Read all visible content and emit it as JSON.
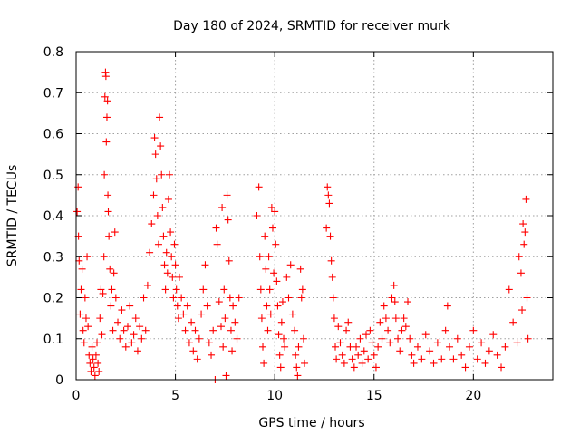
{
  "chart_data": {
    "type": "scatter",
    "title": "Day 180 of 2024, SRMTID for receiver murk",
    "xlabel": "GPS time / hours",
    "ylabel": "SRMTID / TECUs",
    "xlim": [
      0,
      24
    ],
    "ylim": [
      0,
      0.8
    ],
    "xticks": [
      0,
      5,
      10,
      15,
      20
    ],
    "xtick_labels": [
      "0",
      "5",
      "10",
      "15",
      "20"
    ],
    "yticks": [
      0,
      0.1,
      0.2,
      0.3,
      0.4,
      0.5,
      0.6,
      0.7,
      0.8
    ],
    "ytick_labels": [
      "0",
      "0.1",
      "0.2",
      "0.3",
      "0.4",
      "0.5",
      "0.6",
      "0.7",
      "0.8"
    ],
    "grid": true,
    "marker": "+",
    "color": "#ff0000",
    "series": [
      {
        "name": "SRMTID",
        "points": [
          [
            0.05,
            0.41
          ],
          [
            0.1,
            0.47
          ],
          [
            0.12,
            0.35
          ],
          [
            0.15,
            0.29
          ],
          [
            0.2,
            0.16
          ],
          [
            0.25,
            0.22
          ],
          [
            0.3,
            0.27
          ],
          [
            0.35,
            0.12
          ],
          [
            0.4,
            0.09
          ],
          [
            0.45,
            0.2
          ],
          [
            0.5,
            0.15
          ],
          [
            0.55,
            0.3
          ],
          [
            0.6,
            0.13
          ],
          [
            0.65,
            0.06
          ],
          [
            0.7,
            0.04
          ],
          [
            0.75,
            0.02
          ],
          [
            0.8,
            0.08
          ],
          [
            0.85,
            0.05
          ],
          [
            0.9,
            0.03
          ],
          [
            0.95,
            0.01
          ],
          [
            1.0,
            0.06
          ],
          [
            1.05,
            0.09
          ],
          [
            1.1,
            0.04
          ],
          [
            1.15,
            0.02
          ],
          [
            1.2,
            0.15
          ],
          [
            1.25,
            0.22
          ],
          [
            1.3,
            0.11
          ],
          [
            1.35,
            0.21
          ],
          [
            1.4,
            0.3
          ],
          [
            1.42,
            0.5
          ],
          [
            1.45,
            0.69
          ],
          [
            1.48,
            0.75
          ],
          [
            1.5,
            0.74
          ],
          [
            1.52,
            0.58
          ],
          [
            1.55,
            0.64
          ],
          [
            1.58,
            0.68
          ],
          [
            1.6,
            0.45
          ],
          [
            1.62,
            0.41
          ],
          [
            1.65,
            0.35
          ],
          [
            1.7,
            0.27
          ],
          [
            1.75,
            0.18
          ],
          [
            1.8,
            0.22
          ],
          [
            1.85,
            0.12
          ],
          [
            1.9,
            0.26
          ],
          [
            1.95,
            0.36
          ],
          [
            2.0,
            0.2
          ],
          [
            2.1,
            0.14
          ],
          [
            2.2,
            0.1
          ],
          [
            2.3,
            0.17
          ],
          [
            2.4,
            0.12
          ],
          [
            2.5,
            0.08
          ],
          [
            2.6,
            0.13
          ],
          [
            2.7,
            0.18
          ],
          [
            2.8,
            0.09
          ],
          [
            2.9,
            0.11
          ],
          [
            3.0,
            0.15
          ],
          [
            3.1,
            0.07
          ],
          [
            3.2,
            0.13
          ],
          [
            3.3,
            0.1
          ],
          [
            3.4,
            0.2
          ],
          [
            3.5,
            0.12
          ],
          [
            3.6,
            0.23
          ],
          [
            3.7,
            0.31
          ],
          [
            3.8,
            0.38
          ],
          [
            3.9,
            0.45
          ],
          [
            3.95,
            0.59
          ],
          [
            4.0,
            0.55
          ],
          [
            4.05,
            0.49
          ],
          [
            4.1,
            0.4
          ],
          [
            4.15,
            0.33
          ],
          [
            4.2,
            0.64
          ],
          [
            4.25,
            0.57
          ],
          [
            4.3,
            0.5
          ],
          [
            4.35,
            0.42
          ],
          [
            4.4,
            0.35
          ],
          [
            4.45,
            0.28
          ],
          [
            4.5,
            0.22
          ],
          [
            4.55,
            0.31
          ],
          [
            4.6,
            0.26
          ],
          [
            4.65,
            0.44
          ],
          [
            4.7,
            0.5
          ],
          [
            4.75,
            0.36
          ],
          [
            4.8,
            0.3
          ],
          [
            4.85,
            0.25
          ],
          [
            4.9,
            0.2
          ],
          [
            4.95,
            0.33
          ],
          [
            5.0,
            0.28
          ],
          [
            5.05,
            0.22
          ],
          [
            5.1,
            0.18
          ],
          [
            5.15,
            0.15
          ],
          [
            5.2,
            0.25
          ],
          [
            5.3,
            0.2
          ],
          [
            5.4,
            0.16
          ],
          [
            5.5,
            0.12
          ],
          [
            5.6,
            0.18
          ],
          [
            5.7,
            0.09
          ],
          [
            5.8,
            0.14
          ],
          [
            5.9,
            0.07
          ],
          [
            6.0,
            0.12
          ],
          [
            6.1,
            0.05
          ],
          [
            6.2,
            0.1
          ],
          [
            6.3,
            0.16
          ],
          [
            6.4,
            0.22
          ],
          [
            6.5,
            0.28
          ],
          [
            6.6,
            0.18
          ],
          [
            6.7,
            0.09
          ],
          [
            6.8,
            0.06
          ],
          [
            6.9,
            0.12
          ],
          [
            7.0,
            0.0
          ],
          [
            7.05,
            0.37
          ],
          [
            7.1,
            0.33
          ],
          [
            7.2,
            0.19
          ],
          [
            7.3,
            0.13
          ],
          [
            7.35,
            0.42
          ],
          [
            7.4,
            0.08
          ],
          [
            7.45,
            0.22
          ],
          [
            7.5,
            0.15
          ],
          [
            7.55,
            0.01
          ],
          [
            7.6,
            0.45
          ],
          [
            7.65,
            0.39
          ],
          [
            7.7,
            0.29
          ],
          [
            7.75,
            0.2
          ],
          [
            7.8,
            0.12
          ],
          [
            7.85,
            0.07
          ],
          [
            7.9,
            0.18
          ],
          [
            8.0,
            0.14
          ],
          [
            8.1,
            0.1
          ],
          [
            8.2,
            0.2
          ],
          [
            9.1,
            0.4
          ],
          [
            9.2,
            0.47
          ],
          [
            9.25,
            0.3
          ],
          [
            9.3,
            0.22
          ],
          [
            9.35,
            0.15
          ],
          [
            9.4,
            0.08
          ],
          [
            9.45,
            0.04
          ],
          [
            9.5,
            0.35
          ],
          [
            9.55,
            0.27
          ],
          [
            9.6,
            0.18
          ],
          [
            9.65,
            0.12
          ],
          [
            9.7,
            0.3
          ],
          [
            9.75,
            0.22
          ],
          [
            9.8,
            0.16
          ],
          [
            9.85,
            0.42
          ],
          [
            9.9,
            0.37
          ],
          [
            9.95,
            0.26
          ],
          [
            10.0,
            0.41
          ],
          [
            10.05,
            0.33
          ],
          [
            10.1,
            0.24
          ],
          [
            10.15,
            0.18
          ],
          [
            10.2,
            0.11
          ],
          [
            10.25,
            0.06
          ],
          [
            10.3,
            0.03
          ],
          [
            10.35,
            0.14
          ],
          [
            10.4,
            0.19
          ],
          [
            10.45,
            0.1
          ],
          [
            10.5,
            0.08
          ],
          [
            10.6,
            0.25
          ],
          [
            10.7,
            0.2
          ],
          [
            10.8,
            0.28
          ],
          [
            10.9,
            0.16
          ],
          [
            11.0,
            0.12
          ],
          [
            11.05,
            0.06
          ],
          [
            11.1,
            0.03
          ],
          [
            11.15,
            0.01
          ],
          [
            11.2,
            0.08
          ],
          [
            11.3,
            0.27
          ],
          [
            11.35,
            0.2
          ],
          [
            11.4,
            0.22
          ],
          [
            11.45,
            0.1
          ],
          [
            11.5,
            0.04
          ],
          [
            12.6,
            0.37
          ],
          [
            12.65,
            0.47
          ],
          [
            12.7,
            0.45
          ],
          [
            12.75,
            0.43
          ],
          [
            12.8,
            0.35
          ],
          [
            12.85,
            0.29
          ],
          [
            12.9,
            0.25
          ],
          [
            12.95,
            0.2
          ],
          [
            13.0,
            0.15
          ],
          [
            13.05,
            0.08
          ],
          [
            13.1,
            0.05
          ],
          [
            13.2,
            0.13
          ],
          [
            13.3,
            0.09
          ],
          [
            13.4,
            0.06
          ],
          [
            13.5,
            0.04
          ],
          [
            13.6,
            0.12
          ],
          [
            13.7,
            0.14
          ],
          [
            13.8,
            0.08
          ],
          [
            13.9,
            0.05
          ],
          [
            14.0,
            0.03
          ],
          [
            14.1,
            0.08
          ],
          [
            14.2,
            0.06
          ],
          [
            14.3,
            0.1
          ],
          [
            14.4,
            0.04
          ],
          [
            14.5,
            0.07
          ],
          [
            14.6,
            0.11
          ],
          [
            14.7,
            0.05
          ],
          [
            14.8,
            0.12
          ],
          [
            14.9,
            0.09
          ],
          [
            15.0,
            0.06
          ],
          [
            15.1,
            0.03
          ],
          [
            15.2,
            0.08
          ],
          [
            15.3,
            0.14
          ],
          [
            15.4,
            0.1
          ],
          [
            15.5,
            0.18
          ],
          [
            15.6,
            0.15
          ],
          [
            15.7,
            0.12
          ],
          [
            15.8,
            0.09
          ],
          [
            15.9,
            0.2
          ],
          [
            16.0,
            0.23
          ],
          [
            16.05,
            0.19
          ],
          [
            16.1,
            0.15
          ],
          [
            16.2,
            0.1
          ],
          [
            16.3,
            0.07
          ],
          [
            16.4,
            0.12
          ],
          [
            16.5,
            0.15
          ],
          [
            16.6,
            0.13
          ],
          [
            16.7,
            0.19
          ],
          [
            16.8,
            0.1
          ],
          [
            16.9,
            0.06
          ],
          [
            17.0,
            0.04
          ],
          [
            17.2,
            0.08
          ],
          [
            17.4,
            0.05
          ],
          [
            17.6,
            0.11
          ],
          [
            17.8,
            0.07
          ],
          [
            18.0,
            0.04
          ],
          [
            18.2,
            0.09
          ],
          [
            18.4,
            0.05
          ],
          [
            18.6,
            0.12
          ],
          [
            18.7,
            0.18
          ],
          [
            18.8,
            0.08
          ],
          [
            19.0,
            0.05
          ],
          [
            19.2,
            0.1
          ],
          [
            19.4,
            0.06
          ],
          [
            19.6,
            0.03
          ],
          [
            19.8,
            0.08
          ],
          [
            20.0,
            0.12
          ],
          [
            20.2,
            0.05
          ],
          [
            20.4,
            0.09
          ],
          [
            20.6,
            0.04
          ],
          [
            20.8,
            0.07
          ],
          [
            21.0,
            0.11
          ],
          [
            21.2,
            0.06
          ],
          [
            21.4,
            0.03
          ],
          [
            21.6,
            0.08
          ],
          [
            21.8,
            0.22
          ],
          [
            22.0,
            0.14
          ],
          [
            22.2,
            0.09
          ],
          [
            22.3,
            0.3
          ],
          [
            22.4,
            0.26
          ],
          [
            22.45,
            0.17
          ],
          [
            22.5,
            0.38
          ],
          [
            22.55,
            0.33
          ],
          [
            22.6,
            0.36
          ],
          [
            22.65,
            0.44
          ],
          [
            22.7,
            0.2
          ],
          [
            22.75,
            0.1
          ]
        ]
      }
    ]
  }
}
